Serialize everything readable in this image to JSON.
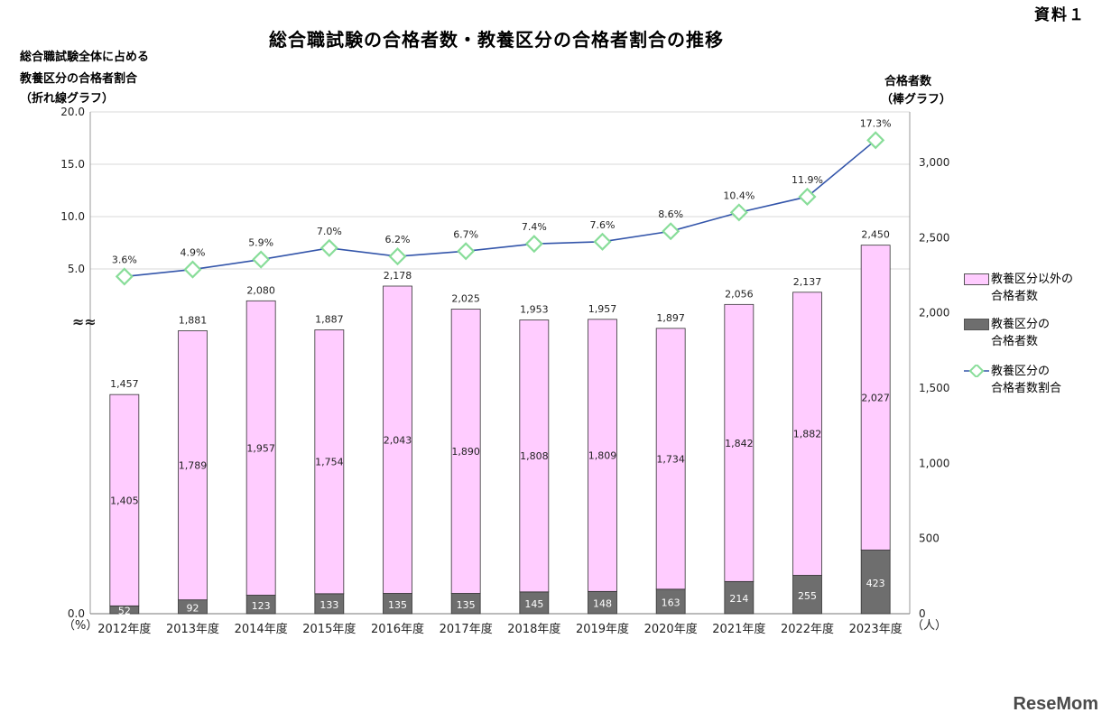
{
  "doc_label": "資料１",
  "chart_data": {
    "type": "bar+line",
    "title": "総合職試験の合格者数・教養区分の合格者割合の推移",
    "categories": [
      "2012年度",
      "2013年度",
      "2014年度",
      "2015年度",
      "2016年度",
      "2017年度",
      "2018年度",
      "2019年度",
      "2020年度",
      "2021年度",
      "2022年度",
      "2023年度"
    ],
    "series": [
      {
        "name": "教養区分の合格者数",
        "type": "bar",
        "color": "#808080",
        "values": [
          52,
          92,
          123,
          133,
          135,
          135,
          145,
          148,
          163,
          214,
          255,
          423
        ]
      },
      {
        "name": "教養区分以外の合格者数",
        "type": "bar",
        "color": "#ffccff",
        "values": [
          1405,
          1789,
          1957,
          1754,
          2043,
          1890,
          1808,
          1809,
          1734,
          1842,
          1882,
          2027
        ]
      },
      {
        "name": "教養区分の合格者数割合",
        "type": "line",
        "color": "#3355aa",
        "marker_color": "#88dd99",
        "values": [
          3.6,
          4.9,
          5.9,
          7.0,
          6.2,
          6.7,
          7.4,
          7.6,
          8.6,
          10.4,
          11.9,
          17.3
        ]
      }
    ],
    "totals": [
      1457,
      1881,
      2080,
      1887,
      2178,
      2025,
      1953,
      1957,
      1897,
      2056,
      2137,
      2450
    ],
    "total_labels": [
      "1,457",
      "1,881",
      "2,080",
      "1,887",
      "2,178",
      "2,025",
      "1,953",
      "1,957",
      "1,897",
      "2,056",
      "2,137",
      "2,450"
    ],
    "other_labels": [
      "1,405",
      "1,789",
      "1,957",
      "1,754",
      "2,043",
      "1,890",
      "1,808",
      "1,809",
      "1,734",
      "1,842",
      "1,882",
      "2,027"
    ],
    "kyoyo_labels": [
      "52",
      "92",
      "123",
      "133",
      "135",
      "135",
      "145",
      "148",
      "163",
      "214",
      "255",
      "423"
    ],
    "rate_labels": [
      "3.6%",
      "4.9%",
      "5.9%",
      "7.0%",
      "6.2%",
      "6.7%",
      "7.4%",
      "7.6%",
      "8.6%",
      "10.4%",
      "11.9%",
      "17.3%"
    ],
    "left_axis": {
      "label_lines": [
        "総合職試験全体に占める",
        "教養区分の合格者割合",
        "（折れ線グラフ）"
      ],
      "unit": "（%）",
      "ticks": [
        "0.0",
        "5.0",
        "10.0",
        "15.0",
        "20.0"
      ],
      "tick_values": [
        0,
        5,
        10,
        15,
        20
      ],
      "break_mark": "≈≈",
      "ylim": [
        0,
        20
      ]
    },
    "right_axis": {
      "label_lines": [
        "合格者数",
        "（棒グラフ）"
      ],
      "unit": "（人）",
      "ticks": [
        "0",
        "500",
        "1,000",
        "1,500",
        "2,000",
        "2,500",
        "3,000"
      ],
      "tick_values": [
        0,
        500,
        1000,
        1500,
        2000,
        2500,
        3000
      ],
      "ylim": [
        0,
        3300
      ]
    }
  },
  "legend": [
    {
      "lines": [
        "教養区分以外の",
        "合格者数"
      ],
      "kind": "bar-pink"
    },
    {
      "lines": [
        "教養区分の",
        "合格者数"
      ],
      "kind": "bar-gray"
    },
    {
      "lines": [
        "教養区分の",
        "合格者数割合"
      ],
      "kind": "line"
    }
  ],
  "watermark": "ReseMom"
}
